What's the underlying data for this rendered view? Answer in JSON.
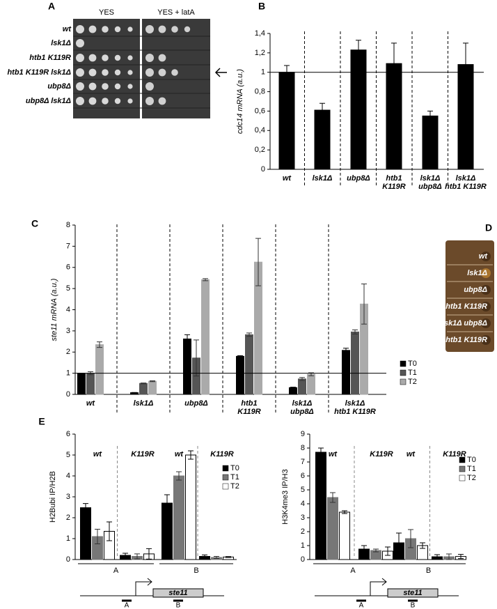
{
  "panel_labels": [
    "A",
    "B",
    "C",
    "D",
    "E"
  ],
  "spot_assay": {
    "columns": [
      "YES",
      "YES + latA"
    ],
    "rows": [
      "wt",
      "lsk1Δ",
      "htb1 K119R",
      "htb1 K119R lsk1Δ",
      "ubp8Δ",
      "ubp8Δ lsk1Δ"
    ]
  },
  "color_assay": {
    "rows": [
      "wt",
      "lsk1Δ",
      "ubp8Δ",
      "htb1 K119R",
      "lsk1Δ ubp8Δ",
      "lsk1Δ htb1 K119R"
    ]
  },
  "gene_diagram": {
    "gene": "ste11",
    "regions": [
      "A",
      "B"
    ]
  },
  "chart_data": [
    {
      "type": "bar",
      "ylabel": "cdc14 mRNA (a.u.)",
      "categories": [
        [
          "wt"
        ],
        [
          "lsk1Δ"
        ],
        [
          "ubp8Δ"
        ],
        [
          "htb1",
          "K119R"
        ],
        [
          "lsk1Δ",
          "ubp8Δ"
        ],
        [
          "lsk1Δ",
          "htb1 K119R"
        ]
      ],
      "series": [
        {
          "color": "#000000",
          "values": [
            1.0,
            0.61,
            1.23,
            1.09,
            0.55,
            1.08
          ],
          "errors": [
            0.07,
            0.07,
            0.1,
            0.21,
            0.05,
            0.22
          ]
        }
      ],
      "ylim": [
        0,
        1.4
      ],
      "yticks": [
        0,
        {
          "value": 0.2,
          "label": "0,2"
        },
        {
          "value": 0.4,
          "label": "0,4"
        },
        {
          "value": 0.6,
          "label": "0,6"
        },
        {
          "value": 0.8,
          "label": "0,8"
        },
        1,
        {
          "value": 1.2,
          "label": "1,2"
        },
        {
          "value": 1.4,
          "label": "1,4"
        }
      ],
      "reference_line": 1
    },
    {
      "type": "bar",
      "ylabel": "ste11 mRNA (a.u.)",
      "categories": [
        [
          "wt"
        ],
        [
          "lsk1Δ"
        ],
        [
          "ubp8Δ"
        ],
        [
          "htb1",
          "K119R"
        ],
        [
          "lsk1Δ",
          "ubp8Δ"
        ],
        [
          "lsk1Δ",
          "htb1 K119R"
        ]
      ],
      "series": [
        {
          "name": "T0",
          "color": "#000000",
          "values": [
            1.0,
            0.08,
            2.62,
            1.8,
            0.32,
            2.08
          ],
          "errors": [
            0.0,
            0.01,
            0.2,
            0.03,
            0.02,
            0.1
          ]
        },
        {
          "name": "T1",
          "color": "#555555",
          "values": [
            1.0,
            0.52,
            1.72,
            2.82,
            0.73,
            2.95
          ],
          "errors": [
            0.07,
            0.02,
            0.85,
            0.08,
            0.07,
            0.1
          ]
        },
        {
          "name": "T2",
          "color": "#aaaaaa",
          "values": [
            2.35,
            0.62,
            5.42,
            6.25,
            0.95,
            4.27
          ],
          "errors": [
            0.13,
            0.02,
            0.05,
            1.12,
            0.07,
            0.95
          ]
        }
      ],
      "ylim": [
        0,
        8
      ],
      "yticks": [
        0,
        1,
        2,
        3,
        4,
        5,
        6,
        7,
        8
      ],
      "reference_line": 1
    },
    {
      "type": "bar",
      "ylabel": "H2Bubi IP/H2B",
      "categories": [
        [
          "wt"
        ],
        [
          "K119R"
        ],
        [
          "wt"
        ],
        [
          "K119R"
        ]
      ],
      "groups": [
        "A",
        "B"
      ],
      "series": [
        {
          "name": "T0",
          "color": "#000000",
          "values": [
            2.48,
            0.2,
            2.7,
            0.15
          ],
          "errors": [
            0.2,
            0.1,
            0.4,
            0.07
          ]
        },
        {
          "name": "T1",
          "color": "#777777",
          "values": [
            1.1,
            0.15,
            4.0,
            0.1
          ],
          "errors": [
            0.35,
            0.12,
            0.2,
            0.05
          ]
        },
        {
          "name": "T2",
          "color": "#ffffff",
          "values": [
            1.35,
            0.27,
            5.0,
            0.12
          ],
          "errors": [
            0.45,
            0.25,
            0.2,
            0.02
          ]
        }
      ],
      "ylim": [
        0,
        6
      ],
      "yticks": [
        0,
        1,
        2,
        3,
        4,
        5,
        6
      ]
    },
    {
      "type": "bar",
      "ylabel": "H3K4me3 IP/H3",
      "categories": [
        [
          "wt"
        ],
        [
          "K119R"
        ],
        [
          "wt"
        ],
        [
          "K119R"
        ]
      ],
      "groups": [
        "A",
        "B"
      ],
      "series": [
        {
          "name": "T0",
          "color": "#000000",
          "values": [
            7.7,
            0.75,
            1.2,
            0.2
          ],
          "errors": [
            0.3,
            0.25,
            0.7,
            0.15
          ]
        },
        {
          "name": "T1",
          "color": "#777777",
          "values": [
            4.45,
            0.65,
            1.5,
            0.2
          ],
          "errors": [
            0.35,
            0.1,
            0.65,
            0.2
          ]
        },
        {
          "name": "T2",
          "color": "#ffffff",
          "values": [
            3.4,
            0.6,
            1.0,
            0.22
          ],
          "errors": [
            0.1,
            0.3,
            0.2,
            0.15
          ]
        }
      ],
      "ylim": [
        0,
        9
      ],
      "yticks": [
        0,
        1,
        2,
        3,
        4,
        5,
        6,
        7,
        8,
        9
      ]
    }
  ]
}
